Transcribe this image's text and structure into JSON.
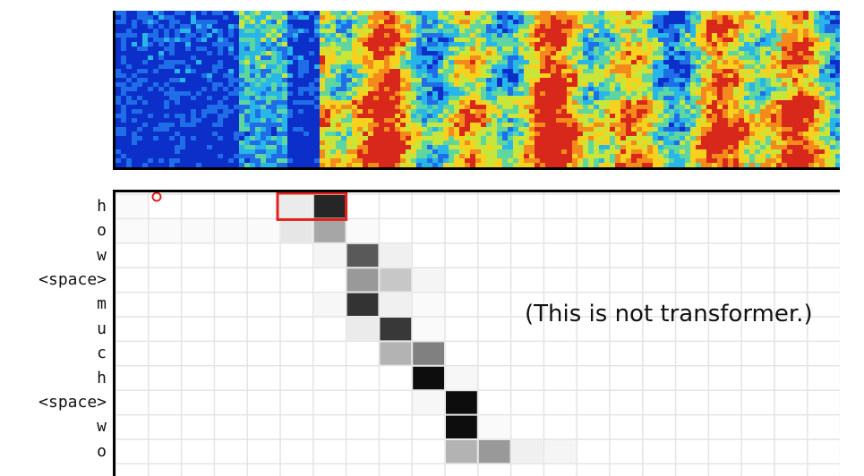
{
  "attention": {
    "rows": [
      "h",
      "o",
      "w",
      "<space>",
      "m",
      "u",
      "c",
      "h",
      "<space>",
      "w",
      "o"
    ],
    "cols": 23,
    "weights": [
      [
        0.02,
        0.0,
        0.0,
        0.0,
        0.0,
        0.08,
        0.85,
        0.0,
        0.0,
        0.0,
        0.0,
        0.0,
        0.0,
        0.0,
        0.0,
        0.0,
        0.0,
        0.0,
        0.0,
        0.0,
        0.0,
        0.0,
        0.0
      ],
      [
        0.02,
        0.02,
        0.02,
        0.02,
        0.02,
        0.1,
        0.35,
        0.02,
        0.0,
        0.0,
        0.0,
        0.0,
        0.0,
        0.0,
        0.0,
        0.0,
        0.0,
        0.0,
        0.0,
        0.0,
        0.0,
        0.0,
        0.0
      ],
      [
        0.0,
        0.0,
        0.0,
        0.0,
        0.0,
        0.0,
        0.04,
        0.65,
        0.06,
        0.0,
        0.0,
        0.0,
        0.0,
        0.0,
        0.0,
        0.0,
        0.0,
        0.0,
        0.0,
        0.0,
        0.0,
        0.0,
        0.0
      ],
      [
        0.0,
        0.0,
        0.0,
        0.0,
        0.0,
        0.0,
        0.0,
        0.4,
        0.22,
        0.04,
        0.0,
        0.0,
        0.0,
        0.0,
        0.0,
        0.0,
        0.0,
        0.0,
        0.0,
        0.0,
        0.0,
        0.0,
        0.0
      ],
      [
        0.0,
        0.0,
        0.0,
        0.0,
        0.0,
        0.0,
        0.03,
        0.8,
        0.06,
        0.02,
        0.0,
        0.0,
        0.0,
        0.0,
        0.0,
        0.0,
        0.0,
        0.0,
        0.0,
        0.0,
        0.0,
        0.0,
        0.0
      ],
      [
        0.0,
        0.0,
        0.0,
        0.0,
        0.0,
        0.0,
        0.0,
        0.08,
        0.78,
        0.02,
        0.0,
        0.0,
        0.0,
        0.0,
        0.0,
        0.0,
        0.0,
        0.0,
        0.0,
        0.0,
        0.0,
        0.0,
        0.0
      ],
      [
        0.0,
        0.0,
        0.0,
        0.0,
        0.0,
        0.0,
        0.0,
        0.0,
        0.3,
        0.5,
        0.0,
        0.0,
        0.0,
        0.0,
        0.0,
        0.0,
        0.0,
        0.0,
        0.0,
        0.0,
        0.0,
        0.0,
        0.0
      ],
      [
        0.0,
        0.0,
        0.0,
        0.0,
        0.0,
        0.0,
        0.0,
        0.0,
        0.0,
        0.95,
        0.03,
        0.0,
        0.0,
        0.0,
        0.0,
        0.0,
        0.0,
        0.0,
        0.0,
        0.0,
        0.0,
        0.0,
        0.0
      ],
      [
        0.0,
        0.0,
        0.0,
        0.0,
        0.0,
        0.0,
        0.0,
        0.0,
        0.0,
        0.03,
        0.95,
        0.0,
        0.0,
        0.0,
        0.0,
        0.0,
        0.0,
        0.0,
        0.0,
        0.0,
        0.0,
        0.0,
        0.0
      ],
      [
        0.0,
        0.0,
        0.0,
        0.0,
        0.0,
        0.0,
        0.0,
        0.0,
        0.0,
        0.0,
        0.95,
        0.02,
        0.0,
        0.0,
        0.0,
        0.0,
        0.0,
        0.0,
        0.0,
        0.0,
        0.0,
        0.0,
        0.0
      ],
      [
        0.0,
        0.0,
        0.0,
        0.0,
        0.0,
        0.0,
        0.0,
        0.0,
        0.0,
        0.0,
        0.3,
        0.4,
        0.06,
        0.04,
        0.0,
        0.0,
        0.0,
        0.0,
        0.0,
        0.0,
        0.0,
        0.0,
        0.0
      ]
    ],
    "highlight": {
      "row": 0,
      "col_start": 5,
      "col_end": 6,
      "color": "#e0201c"
    },
    "marker_color": "#e0201c"
  },
  "spectrogram": {
    "colormap": [
      "#0b2fc8",
      "#1f6ee8",
      "#28b6e8",
      "#5fd6a0",
      "#c8e63a",
      "#f6d21e",
      "#f48a1c",
      "#d8281c"
    ]
  },
  "note": "(This is not transformer.)"
}
